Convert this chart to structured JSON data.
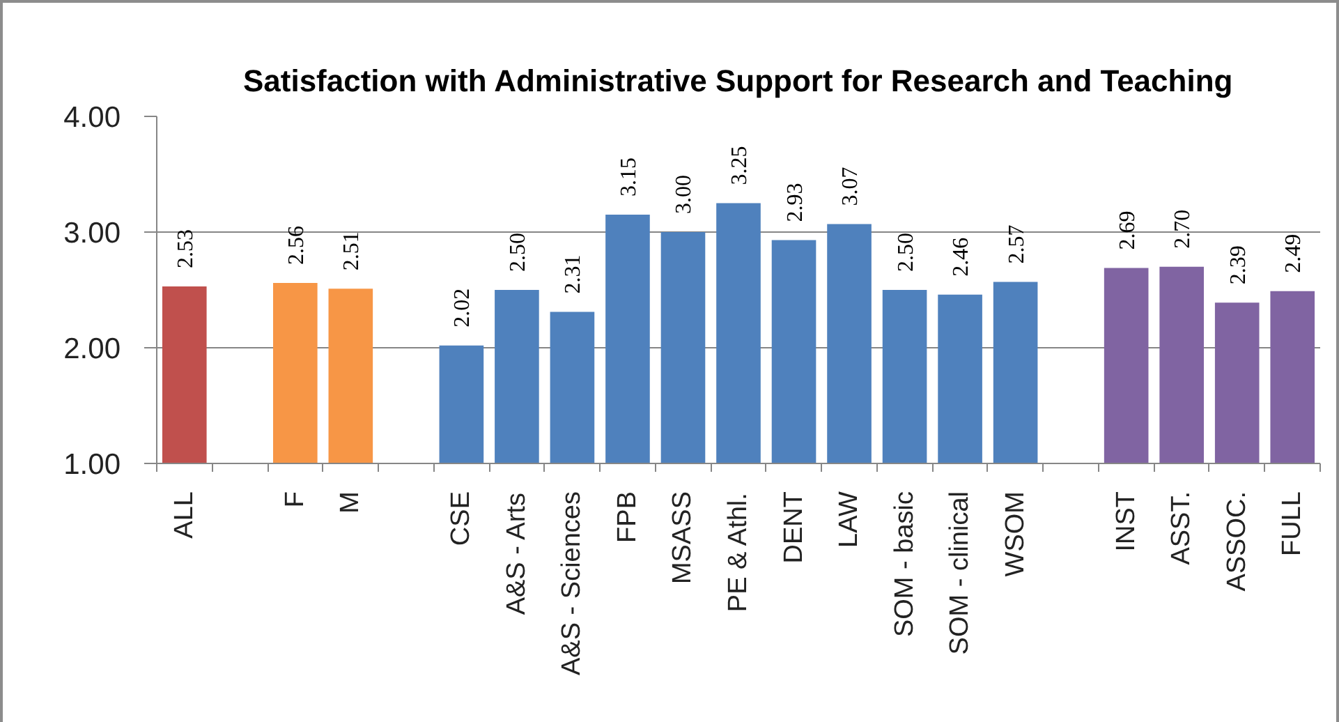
{
  "chart_data": {
    "type": "bar",
    "title": "Satisfaction with Administrative Support for Research and Teaching",
    "categories": [
      "ALL",
      null,
      "F",
      "M",
      null,
      "CSE",
      "A&S - Arts",
      "A&S - Sciences",
      "FPB",
      "MSASS",
      "PE & Athl.",
      "DENT",
      "LAW",
      "SOM - basic",
      "SOM - clinical",
      "WSOM",
      null,
      "INST",
      "ASST.",
      "ASSOC.",
      "FULL"
    ],
    "values": [
      2.53,
      null,
      2.56,
      2.51,
      null,
      2.02,
      2.5,
      2.31,
      3.15,
      3.0,
      3.25,
      2.93,
      3.07,
      2.5,
      2.46,
      2.57,
      null,
      2.69,
      2.7,
      2.39,
      2.49
    ],
    "colors": [
      "#c0504d",
      null,
      "#f79646",
      "#f79646",
      null,
      "#4f81bd",
      "#4f81bd",
      "#4f81bd",
      "#4f81bd",
      "#4f81bd",
      "#4f81bd",
      "#4f81bd",
      "#4f81bd",
      "#4f81bd",
      "#4f81bd",
      "#4f81bd",
      null,
      "#8064a2",
      "#8064a2",
      "#8064a2",
      "#8064a2"
    ],
    "value_labels": [
      "2.53",
      null,
      "2.56",
      "2.51",
      null,
      "2.02",
      "2.50",
      "2.31",
      "3.15",
      "3.00",
      "3.25",
      "2.93",
      "3.07",
      "2.50",
      "2.46",
      "2.57",
      null,
      "2.69",
      "2.70",
      "2.39",
      "2.49"
    ],
    "ylim": [
      1,
      4
    ],
    "yticks": [
      {
        "value": 1,
        "label": "1.00"
      },
      {
        "value": 2,
        "label": "2.00"
      },
      {
        "value": 3,
        "label": "3.00"
      },
      {
        "value": 4,
        "label": "4.00"
      }
    ],
    "grid": "y"
  }
}
